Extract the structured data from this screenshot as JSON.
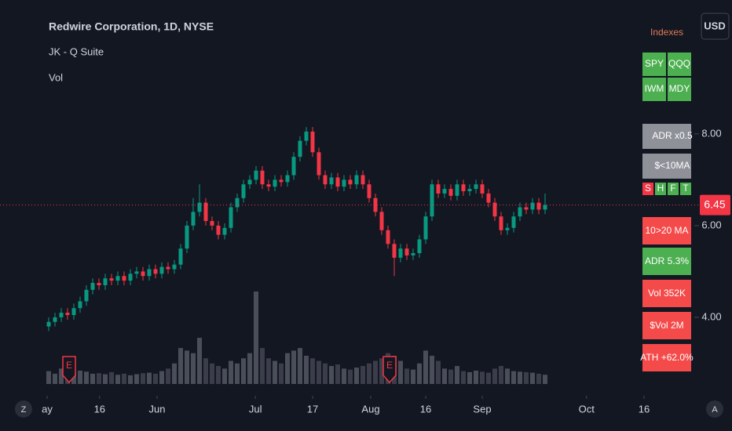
{
  "header": {
    "title": "Redwire Corporation, 1D, NYSE",
    "indicator": "JK - Q Suite",
    "volume_label": "Vol",
    "currency": "USD",
    "left_button": "Z",
    "right_button": "A"
  },
  "panel": {
    "title": "Indexes",
    "indexes": [
      "SPY",
      "QQQ",
      "IWM",
      "MDY"
    ],
    "checks": [
      "ADR x0.5",
      "$<10MA"
    ],
    "flags": [
      "S",
      "H",
      "F",
      "T"
    ],
    "stats": [
      "10>20 MA",
      "ADR 5.3%",
      "Vol 352K",
      "$Vol 2M",
      "ATH +62.0%"
    ]
  },
  "chart_data": {
    "type": "candlestick",
    "up_color": "#089981",
    "down_color": "#f23645",
    "x": [
      0,
      1,
      2,
      3,
      4,
      5,
      6,
      7,
      8,
      9,
      10,
      11,
      12,
      13,
      14,
      15,
      16,
      17,
      18,
      19,
      20,
      21,
      22,
      23,
      24,
      25,
      26,
      27,
      28,
      29,
      30,
      31,
      32,
      33,
      34,
      35,
      36,
      37,
      38,
      39,
      40,
      41,
      42,
      43,
      44,
      45,
      46,
      47,
      48,
      49,
      50,
      51,
      52,
      53,
      54,
      55,
      56,
      57,
      58,
      59,
      60,
      61,
      62,
      63,
      64,
      65,
      66,
      67,
      68,
      69,
      70,
      71,
      72,
      73,
      74,
      75,
      76,
      77,
      78,
      79
    ],
    "open": [
      3.8,
      3.9,
      4.0,
      4.1,
      4.05,
      4.2,
      4.35,
      4.6,
      4.75,
      4.7,
      4.85,
      4.8,
      4.9,
      4.8,
      4.95,
      5.0,
      4.9,
      5.05,
      4.95,
      5.1,
      5.05,
      5.15,
      5.5,
      6.0,
      6.3,
      6.5,
      6.1,
      6.0,
      5.8,
      5.95,
      6.4,
      6.6,
      6.9,
      7.0,
      7.2,
      6.9,
      6.85,
      7.0,
      6.95,
      7.1,
      7.5,
      7.85,
      8.05,
      7.6,
      7.1,
      6.9,
      7.05,
      6.85,
      7.0,
      6.9,
      7.1,
      6.9,
      6.6,
      6.3,
      5.9,
      5.6,
      5.3,
      5.5,
      5.35,
      5.4,
      5.7,
      6.2,
      6.9,
      6.7,
      6.8,
      6.65,
      6.9,
      6.75,
      6.8,
      6.9,
      6.7,
      6.5,
      6.2,
      5.9,
      5.95,
      6.2,
      6.4,
      6.35,
      6.5,
      6.35
    ],
    "high": [
      4.0,
      4.1,
      4.2,
      4.2,
      4.3,
      4.45,
      4.7,
      4.85,
      4.85,
      4.95,
      4.95,
      5.0,
      5.0,
      5.05,
      5.1,
      5.1,
      5.15,
      5.15,
      5.2,
      5.2,
      5.25,
      5.6,
      6.1,
      6.6,
      6.9,
      6.6,
      6.2,
      6.1,
      6.05,
      6.5,
      6.7,
      7.0,
      7.1,
      7.3,
      7.3,
      7.0,
      7.1,
      7.1,
      7.2,
      7.6,
      7.95,
      8.15,
      8.15,
      7.7,
      7.2,
      7.15,
      7.15,
      7.1,
      7.1,
      7.2,
      7.2,
      7.0,
      6.7,
      6.4,
      6.0,
      5.7,
      5.6,
      5.6,
      5.5,
      5.8,
      6.3,
      7.0,
      7.0,
      6.9,
      6.9,
      7.0,
      7.0,
      6.9,
      7.0,
      7.0,
      6.8,
      6.6,
      6.3,
      6.05,
      6.3,
      6.5,
      6.5,
      6.6,
      6.6,
      6.7
    ],
    "low": [
      3.7,
      3.8,
      3.9,
      3.95,
      3.95,
      4.1,
      4.25,
      4.5,
      4.6,
      4.6,
      4.7,
      4.7,
      4.7,
      4.7,
      4.85,
      4.8,
      4.8,
      4.85,
      4.85,
      4.95,
      4.95,
      5.05,
      5.4,
      5.9,
      6.2,
      6.0,
      5.9,
      5.7,
      5.7,
      5.85,
      6.3,
      6.5,
      6.8,
      6.9,
      6.8,
      6.75,
      6.75,
      6.85,
      6.85,
      7.0,
      7.4,
      7.75,
      7.5,
      7.0,
      6.8,
      6.8,
      6.75,
      6.75,
      6.8,
      6.8,
      6.8,
      6.5,
      6.2,
      5.8,
      5.5,
      4.9,
      5.2,
      5.25,
      5.25,
      5.3,
      5.6,
      6.1,
      6.6,
      6.6,
      6.55,
      6.55,
      6.65,
      6.65,
      6.7,
      6.6,
      6.4,
      6.1,
      5.8,
      5.8,
      5.85,
      6.1,
      6.25,
      6.25,
      6.25,
      6.25
    ],
    "close": [
      3.9,
      4.0,
      4.1,
      4.05,
      4.2,
      4.35,
      4.6,
      4.75,
      4.7,
      4.85,
      4.8,
      4.9,
      4.8,
      4.95,
      5.0,
      4.9,
      5.05,
      4.95,
      5.1,
      5.05,
      5.15,
      5.5,
      6.0,
      6.3,
      6.5,
      6.1,
      6.0,
      5.8,
      5.95,
      6.4,
      6.6,
      6.9,
      7.0,
      7.2,
      6.9,
      6.85,
      7.0,
      6.95,
      7.1,
      7.5,
      7.85,
      8.05,
      7.6,
      7.1,
      6.9,
      7.05,
      6.85,
      7.0,
      6.9,
      7.1,
      6.9,
      6.6,
      6.3,
      5.9,
      5.6,
      5.3,
      5.5,
      5.35,
      5.4,
      5.7,
      6.2,
      6.9,
      6.7,
      6.8,
      6.65,
      6.9,
      6.75,
      6.8,
      6.9,
      6.7,
      6.5,
      6.2,
      5.9,
      5.95,
      6.2,
      6.4,
      6.35,
      6.5,
      6.35,
      6.45
    ],
    "volume": [
      250000,
      200000,
      300000,
      180000,
      220000,
      260000,
      240000,
      200000,
      210000,
      190000,
      230000,
      180000,
      200000,
      170000,
      190000,
      210000,
      220000,
      200000,
      250000,
      300000,
      400000,
      700000,
      650000,
      600000,
      900000,
      500000,
      400000,
      350000,
      300000,
      450000,
      400000,
      500000,
      600000,
      1800000,
      700000,
      500000,
      450000,
      400000,
      600000,
      650000,
      700000,
      550000,
      500000,
      450000,
      400000,
      350000,
      380000,
      300000,
      280000,
      320000,
      350000,
      400000,
      450000,
      500000,
      600000,
      550000,
      450000,
      300000,
      280000,
      400000,
      650000,
      550000,
      450000,
      300000,
      280000,
      350000,
      250000,
      230000,
      260000,
      240000,
      220000,
      300000,
      350000,
      300000,
      250000,
      240000,
      230000,
      220000,
      200000,
      180000
    ],
    "xlim": [
      -7.75,
      101
    ],
    "xticks": [
      {
        "value": -0.25,
        "label": "ay"
      },
      {
        "value": 8.1,
        "label": "16"
      },
      {
        "value": 17.25,
        "label": "Jun"
      },
      {
        "value": 32.9,
        "label": "Jul"
      },
      {
        "value": 42,
        "label": "17"
      },
      {
        "value": 51.25,
        "label": "Aug"
      },
      {
        "value": 60,
        "label": "16"
      },
      {
        "value": 69,
        "label": "Sep"
      },
      {
        "value": 85.6,
        "label": "Oct"
      },
      {
        "value": 94.75,
        "label": "16"
      }
    ],
    "ylim": [
      2.29,
      10.92
    ],
    "yticks": [
      {
        "value": 8,
        "label": "8.00"
      },
      {
        "value": 6,
        "label": "6.00"
      },
      {
        "value": 4,
        "label": "4.00"
      }
    ],
    "annotations": [
      {
        "x": 3.25,
        "label": "E"
      },
      {
        "x": 54.25,
        "label": "E"
      }
    ]
  }
}
